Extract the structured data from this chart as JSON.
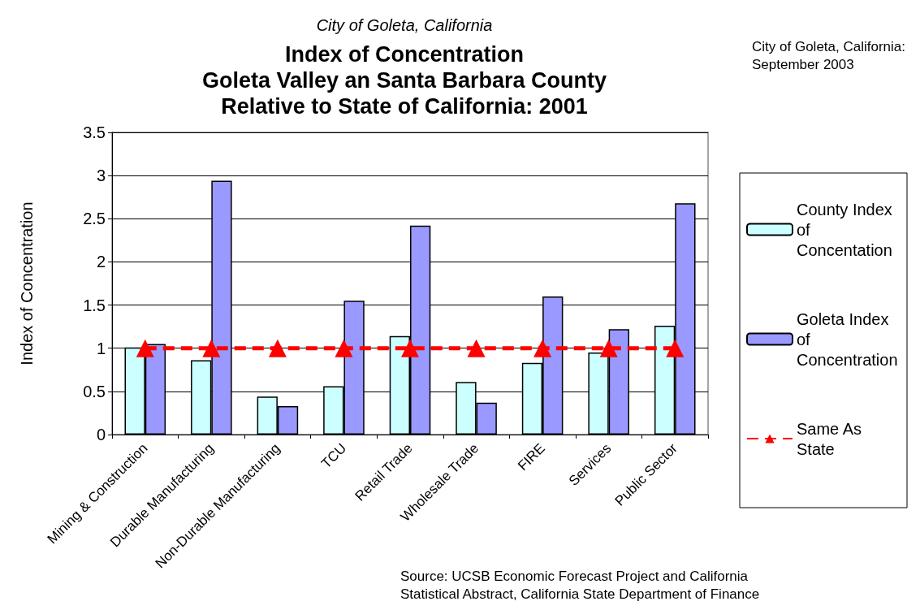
{
  "chart_data": {
    "type": "bar",
    "subtitle": "City of Goleta, California",
    "title": "Index of Concentration\nGoleta Valley an Santa Barbara County\nRelative to State of California: 2001",
    "ylabel": "Index of Concentration",
    "categories": [
      "Mining & Construction",
      "Durable Manufacturing",
      "Non-Durable Manufacturing",
      "TCU",
      "Retail Trade",
      "Wholesale Trade",
      "FIRE",
      "Services",
      "Public Sector"
    ],
    "series": [
      {
        "name": "County Index of Concentation",
        "color": "#ccffff",
        "values": [
          1.01,
          0.86,
          0.44,
          0.56,
          1.14,
          0.61,
          0.83,
          0.95,
          1.26
        ]
      },
      {
        "name": "Goleta Index of Concentration",
        "color": "#9999ff",
        "values": [
          1.05,
          2.94,
          0.33,
          1.55,
          2.42,
          0.37,
          1.6,
          1.22,
          2.68
        ]
      },
      {
        "name": "Same As State",
        "type": "line",
        "color": "#ff0000",
        "marker": "triangle",
        "line_style": "dashed",
        "values": [
          1,
          1,
          1,
          1,
          1,
          1,
          1,
          1,
          1
        ]
      }
    ],
    "ylim": [
      0,
      3.5
    ],
    "yticks": [
      0,
      0.5,
      1,
      1.5,
      2,
      2.5,
      3,
      3.5
    ],
    "grid": "y",
    "legend": "right",
    "annotations": [
      "City of Goleta, California:\nSeptember 2003",
      "Source: UCSB Economic Forecast Project and California\nStatistical Abstract, California State Department of Finance"
    ]
  }
}
